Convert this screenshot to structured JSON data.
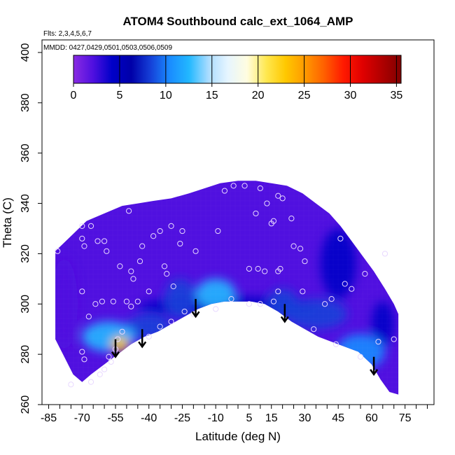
{
  "chart_data": {
    "type": "heatmap",
    "title": "ATOM4 Southbound calc_ext_1064_AMP",
    "flights_label": "Flts: 2,3,4,5,6,7",
    "dates_label": "MMDD: 0427,0429,0501,0503,0506,0509",
    "xlabel": "Latitude (deg N)",
    "ylabel": "Theta (C)",
    "xlim": [
      -88,
      88
    ],
    "ylim": [
      260,
      405
    ],
    "x_ticks": [
      -85,
      -70,
      -55,
      -40,
      -25,
      -10,
      5,
      15,
      30,
      45,
      60,
      75
    ],
    "x_tick_labels": [
      "-85",
      "-70",
      "-55",
      "-40",
      "-25",
      "-10",
      "5",
      "15",
      "30",
      "45",
      "60",
      "75"
    ],
    "y_ticks": [
      260,
      280,
      300,
      320,
      340,
      360,
      380,
      400
    ],
    "y_tick_labels": [
      "260",
      "280",
      "300",
      "320",
      "340",
      "360",
      "380",
      "400"
    ],
    "colorbar": {
      "min": 0,
      "max": 35.5,
      "ticks": [
        0,
        5,
        10,
        15,
        20,
        25,
        30,
        35
      ],
      "tick_labels": [
        "0",
        "5",
        "10",
        "15",
        "20",
        "25",
        "30",
        "35"
      ],
      "colors": [
        "#8a2be2",
        "#5010e0",
        "#0000c8",
        "#0000a8",
        "#1540d8",
        "#1a8cff",
        "#22b8ff",
        "#aadcff",
        "#e6f5ff",
        "#fffde0",
        "#ffe850",
        "#ffc800",
        "#ff9a00",
        "#ff6000",
        "#ff1a00",
        "#e00000",
        "#b00000",
        "#800000"
      ]
    },
    "top_boundary": [
      [
        -82,
        321
      ],
      [
        -75,
        327
      ],
      [
        -68,
        333
      ],
      [
        -60,
        336
      ],
      [
        -52,
        339
      ],
      [
        -45,
        340
      ],
      [
        -38,
        341
      ],
      [
        -30,
        342
      ],
      [
        -22,
        344
      ],
      [
        -15,
        346
      ],
      [
        -8,
        348
      ],
      [
        0,
        349
      ],
      [
        8,
        349
      ],
      [
        15,
        348
      ],
      [
        22,
        347
      ],
      [
        29,
        344
      ],
      [
        35,
        340
      ],
      [
        41,
        336
      ],
      [
        46,
        331
      ],
      [
        51,
        325
      ],
      [
        56,
        319
      ],
      [
        61,
        313
      ],
      [
        66,
        306
      ],
      [
        70,
        300
      ],
      [
        72,
        296
      ]
    ],
    "bottom_boundary": [
      [
        72,
        264
      ],
      [
        68,
        265
      ],
      [
        64,
        270
      ],
      [
        60,
        276
      ],
      [
        54,
        281
      ],
      [
        48,
        283
      ],
      [
        42,
        285
      ],
      [
        36,
        287
      ],
      [
        30,
        290
      ],
      [
        24,
        293
      ],
      [
        18,
        297
      ],
      [
        12,
        300
      ],
      [
        6,
        301
      ],
      [
        0,
        301
      ],
      [
        -6,
        301
      ],
      [
        -12,
        300
      ],
      [
        -18,
        298
      ],
      [
        -24,
        295
      ],
      [
        -30,
        292
      ],
      [
        -36,
        289
      ],
      [
        -42,
        287
      ],
      [
        -48,
        284
      ],
      [
        -54,
        280
      ],
      [
        -60,
        276
      ],
      [
        -66,
        272
      ],
      [
        -70,
        269
      ],
      [
        -74,
        272
      ],
      [
        -78,
        279
      ],
      [
        -82,
        286
      ],
      [
        -82,
        300
      ]
    ],
    "hotspots": [
      {
        "lat": -58,
        "theta": 287,
        "r_lat": 12,
        "r_theta": 6,
        "value": 13
      },
      {
        "lat": -53,
        "theta": 284,
        "r_lat": 4,
        "r_theta": 3,
        "value": 24
      },
      {
        "lat": -40,
        "theta": 291,
        "r_lat": 10,
        "r_theta": 5,
        "value": 9
      },
      {
        "lat": -26,
        "theta": 302,
        "r_lat": 7,
        "r_theta": 8,
        "value": 9
      },
      {
        "lat": -10,
        "theta": 304,
        "r_lat": 9,
        "r_theta": 6,
        "value": 12
      },
      {
        "lat": 20,
        "theta": 300,
        "r_lat": 7,
        "r_theta": 6,
        "value": 9
      },
      {
        "lat": 35,
        "theta": 296,
        "r_lat": 14,
        "r_theta": 6,
        "value": 8
      },
      {
        "lat": 55,
        "theta": 281,
        "r_lat": 11,
        "r_theta": 7,
        "value": 11
      },
      {
        "lat": 45,
        "theta": 316,
        "r_lat": 8,
        "r_theta": 14,
        "value": 5
      },
      {
        "lat": 65,
        "theta": 292,
        "r_lat": 5,
        "r_theta": 9,
        "value": 5
      },
      {
        "lat": -5,
        "theta": 299,
        "r_lat": 40,
        "r_theta": 4,
        "value": 5
      },
      {
        "lat": -78,
        "theta": 300,
        "r_lat": 6,
        "r_theta": 18,
        "value": 3
      }
    ],
    "sample_points": [
      [
        -81,
        321
      ],
      [
        -70,
        331
      ],
      [
        -70,
        326
      ],
      [
        -69,
        323
      ],
      [
        -66,
        331
      ],
      [
        -63,
        325
      ],
      [
        -60,
        325
      ],
      [
        -59,
        321
      ],
      [
        -53,
        315
      ],
      [
        -70,
        305
      ],
      [
        -67,
        295
      ],
      [
        -64,
        300
      ],
      [
        -61,
        301
      ],
      [
        -56,
        301
      ],
      [
        -50,
        301
      ],
      [
        -48,
        299
      ],
      [
        -45,
        301
      ],
      [
        -47,
        310
      ],
      [
        -48,
        313
      ],
      [
        -44,
        317
      ],
      [
        -43,
        323
      ],
      [
        -38,
        327
      ],
      [
        -35,
        329
      ],
      [
        -30,
        331
      ],
      [
        -33,
        315
      ],
      [
        -32,
        312
      ],
      [
        -29,
        307
      ],
      [
        -40,
        305
      ],
      [
        -49,
        337
      ],
      [
        -26,
        324
      ],
      [
        -25,
        329
      ],
      [
        -19,
        321
      ],
      [
        -9,
        329
      ],
      [
        -6,
        345
      ],
      [
        -2,
        347
      ],
      [
        3,
        347
      ],
      [
        8,
        336
      ],
      [
        10,
        346
      ],
      [
        13,
        340
      ],
      [
        18,
        343
      ],
      [
        20,
        342
      ],
      [
        16,
        333
      ],
      [
        24,
        334
      ],
      [
        15,
        332
      ],
      [
        5,
        314
      ],
      [
        9,
        314
      ],
      [
        12,
        313
      ],
      [
        18,
        313
      ],
      [
        19,
        314
      ],
      [
        25,
        323
      ],
      [
        28,
        322
      ],
      [
        30,
        317
      ],
      [
        18,
        305
      ],
      [
        16,
        301
      ],
      [
        10,
        300
      ],
      [
        5,
        300
      ],
      [
        -3,
        302
      ],
      [
        -10,
        298
      ],
      [
        -20,
        296
      ],
      [
        -24,
        297
      ],
      [
        -30,
        293
      ],
      [
        -35,
        291
      ],
      [
        -40,
        287
      ],
      [
        -52,
        289
      ],
      [
        -54,
        286
      ],
      [
        -58,
        279
      ],
      [
        -57,
        277
      ],
      [
        -60,
        274
      ],
      [
        -62,
        272
      ],
      [
        -66,
        269
      ],
      [
        -69,
        278
      ],
      [
        -70,
        281
      ],
      [
        -55,
        282
      ],
      [
        39,
        300
      ],
      [
        42,
        302
      ],
      [
        48,
        308
      ],
      [
        51,
        306
      ],
      [
        46,
        326
      ],
      [
        57,
        312
      ],
      [
        66,
        320
      ],
      [
        29,
        305
      ],
      [
        34,
        290
      ],
      [
        55,
        279
      ],
      [
        63,
        285
      ],
      [
        70,
        286
      ],
      [
        44,
        284
      ],
      [
        -75,
        268
      ]
    ],
    "arrows": [
      {
        "lat": -55,
        "theta_from": 286,
        "theta_to": 279
      },
      {
        "lat": -43,
        "theta_from": 290,
        "theta_to": 283
      },
      {
        "lat": -19,
        "theta_from": 302,
        "theta_to": 295
      },
      {
        "lat": 21,
        "theta_from": 300,
        "theta_to": 293
      },
      {
        "lat": 61,
        "theta_from": 279,
        "theta_to": 272
      }
    ]
  }
}
